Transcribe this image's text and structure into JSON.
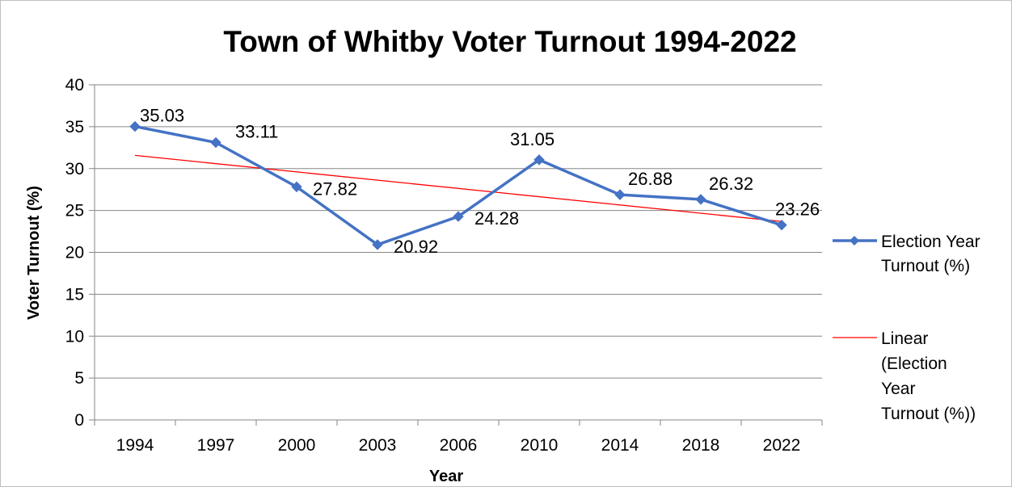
{
  "chart_data": {
    "type": "line",
    "title": "Town of Whitby Voter Turnout 1994-2022",
    "xlabel": "Year",
    "ylabel": "Voter Turnout (%)",
    "categories": [
      "1994",
      "1997",
      "2000",
      "2003",
      "2006",
      "2010",
      "2014",
      "2018",
      "2022"
    ],
    "series": [
      {
        "name": "Election Year Turnout (%)",
        "values": [
          35.03,
          33.11,
          27.82,
          20.92,
          24.28,
          31.05,
          26.88,
          26.32,
          23.26
        ],
        "data_labels": [
          "35.03",
          "33.11",
          "27.82",
          "20.92",
          "24.28",
          "31.05",
          "26.88",
          "26.32",
          "23.26"
        ],
        "color": "#4472C4",
        "marker": "diamond"
      }
    ],
    "trendline": {
      "type": "linear",
      "name": "Linear (Election Year Turnout (%))",
      "color": "#FF0000"
    },
    "ylim": [
      0,
      40
    ],
    "yticks": [
      "0",
      "5",
      "10",
      "15",
      "20",
      "25",
      "30",
      "35",
      "40"
    ],
    "grid": true,
    "legend_position": "right",
    "legend": {
      "series_lines": [
        "Election Year",
        "Turnout (%)"
      ],
      "trend_lines": [
        "Linear",
        "(Election",
        "Year",
        "Turnout (%))"
      ]
    }
  }
}
